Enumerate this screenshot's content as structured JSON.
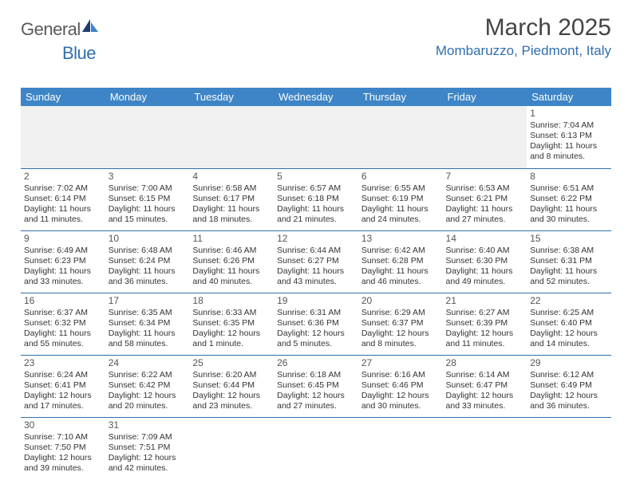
{
  "logo": {
    "part1": "General",
    "part2": "Blue"
  },
  "title": "March 2025",
  "location": "Mombaruzzo, Piedmont, Italy",
  "colors": {
    "header_bg": "#3d85c6",
    "accent": "#2f6fb0",
    "logo_gray": "#5a5a5a",
    "text": "#333333",
    "empty_bg": "#f0f0f0"
  },
  "days_of_week": [
    "Sunday",
    "Monday",
    "Tuesday",
    "Wednesday",
    "Thursday",
    "Friday",
    "Saturday"
  ],
  "cells": [
    [
      null,
      null,
      null,
      null,
      null,
      null,
      {
        "n": "1",
        "sr": "Sunrise: 7:04 AM",
        "ss": "Sunset: 6:13 PM",
        "dl": "Daylight: 11 hours and 8 minutes."
      }
    ],
    [
      {
        "n": "2",
        "sr": "Sunrise: 7:02 AM",
        "ss": "Sunset: 6:14 PM",
        "dl": "Daylight: 11 hours and 11 minutes."
      },
      {
        "n": "3",
        "sr": "Sunrise: 7:00 AM",
        "ss": "Sunset: 6:15 PM",
        "dl": "Daylight: 11 hours and 15 minutes."
      },
      {
        "n": "4",
        "sr": "Sunrise: 6:58 AM",
        "ss": "Sunset: 6:17 PM",
        "dl": "Daylight: 11 hours and 18 minutes."
      },
      {
        "n": "5",
        "sr": "Sunrise: 6:57 AM",
        "ss": "Sunset: 6:18 PM",
        "dl": "Daylight: 11 hours and 21 minutes."
      },
      {
        "n": "6",
        "sr": "Sunrise: 6:55 AM",
        "ss": "Sunset: 6:19 PM",
        "dl": "Daylight: 11 hours and 24 minutes."
      },
      {
        "n": "7",
        "sr": "Sunrise: 6:53 AM",
        "ss": "Sunset: 6:21 PM",
        "dl": "Daylight: 11 hours and 27 minutes."
      },
      {
        "n": "8",
        "sr": "Sunrise: 6:51 AM",
        "ss": "Sunset: 6:22 PM",
        "dl": "Daylight: 11 hours and 30 minutes."
      }
    ],
    [
      {
        "n": "9",
        "sr": "Sunrise: 6:49 AM",
        "ss": "Sunset: 6:23 PM",
        "dl": "Daylight: 11 hours and 33 minutes."
      },
      {
        "n": "10",
        "sr": "Sunrise: 6:48 AM",
        "ss": "Sunset: 6:24 PM",
        "dl": "Daylight: 11 hours and 36 minutes."
      },
      {
        "n": "11",
        "sr": "Sunrise: 6:46 AM",
        "ss": "Sunset: 6:26 PM",
        "dl": "Daylight: 11 hours and 40 minutes."
      },
      {
        "n": "12",
        "sr": "Sunrise: 6:44 AM",
        "ss": "Sunset: 6:27 PM",
        "dl": "Daylight: 11 hours and 43 minutes."
      },
      {
        "n": "13",
        "sr": "Sunrise: 6:42 AM",
        "ss": "Sunset: 6:28 PM",
        "dl": "Daylight: 11 hours and 46 minutes."
      },
      {
        "n": "14",
        "sr": "Sunrise: 6:40 AM",
        "ss": "Sunset: 6:30 PM",
        "dl": "Daylight: 11 hours and 49 minutes."
      },
      {
        "n": "15",
        "sr": "Sunrise: 6:38 AM",
        "ss": "Sunset: 6:31 PM",
        "dl": "Daylight: 11 hours and 52 minutes."
      }
    ],
    [
      {
        "n": "16",
        "sr": "Sunrise: 6:37 AM",
        "ss": "Sunset: 6:32 PM",
        "dl": "Daylight: 11 hours and 55 minutes."
      },
      {
        "n": "17",
        "sr": "Sunrise: 6:35 AM",
        "ss": "Sunset: 6:34 PM",
        "dl": "Daylight: 11 hours and 58 minutes."
      },
      {
        "n": "18",
        "sr": "Sunrise: 6:33 AM",
        "ss": "Sunset: 6:35 PM",
        "dl": "Daylight: 12 hours and 1 minute."
      },
      {
        "n": "19",
        "sr": "Sunrise: 6:31 AM",
        "ss": "Sunset: 6:36 PM",
        "dl": "Daylight: 12 hours and 5 minutes."
      },
      {
        "n": "20",
        "sr": "Sunrise: 6:29 AM",
        "ss": "Sunset: 6:37 PM",
        "dl": "Daylight: 12 hours and 8 minutes."
      },
      {
        "n": "21",
        "sr": "Sunrise: 6:27 AM",
        "ss": "Sunset: 6:39 PM",
        "dl": "Daylight: 12 hours and 11 minutes."
      },
      {
        "n": "22",
        "sr": "Sunrise: 6:25 AM",
        "ss": "Sunset: 6:40 PM",
        "dl": "Daylight: 12 hours and 14 minutes."
      }
    ],
    [
      {
        "n": "23",
        "sr": "Sunrise: 6:24 AM",
        "ss": "Sunset: 6:41 PM",
        "dl": "Daylight: 12 hours and 17 minutes."
      },
      {
        "n": "24",
        "sr": "Sunrise: 6:22 AM",
        "ss": "Sunset: 6:42 PM",
        "dl": "Daylight: 12 hours and 20 minutes."
      },
      {
        "n": "25",
        "sr": "Sunrise: 6:20 AM",
        "ss": "Sunset: 6:44 PM",
        "dl": "Daylight: 12 hours and 23 minutes."
      },
      {
        "n": "26",
        "sr": "Sunrise: 6:18 AM",
        "ss": "Sunset: 6:45 PM",
        "dl": "Daylight: 12 hours and 27 minutes."
      },
      {
        "n": "27",
        "sr": "Sunrise: 6:16 AM",
        "ss": "Sunset: 6:46 PM",
        "dl": "Daylight: 12 hours and 30 minutes."
      },
      {
        "n": "28",
        "sr": "Sunrise: 6:14 AM",
        "ss": "Sunset: 6:47 PM",
        "dl": "Daylight: 12 hours and 33 minutes."
      },
      {
        "n": "29",
        "sr": "Sunrise: 6:12 AM",
        "ss": "Sunset: 6:49 PM",
        "dl": "Daylight: 12 hours and 36 minutes."
      }
    ],
    [
      {
        "n": "30",
        "sr": "Sunrise: 7:10 AM",
        "ss": "Sunset: 7:50 PM",
        "dl": "Daylight: 12 hours and 39 minutes."
      },
      {
        "n": "31",
        "sr": "Sunrise: 7:09 AM",
        "ss": "Sunset: 7:51 PM",
        "dl": "Daylight: 12 hours and 42 minutes."
      },
      null,
      null,
      null,
      null,
      null
    ]
  ]
}
